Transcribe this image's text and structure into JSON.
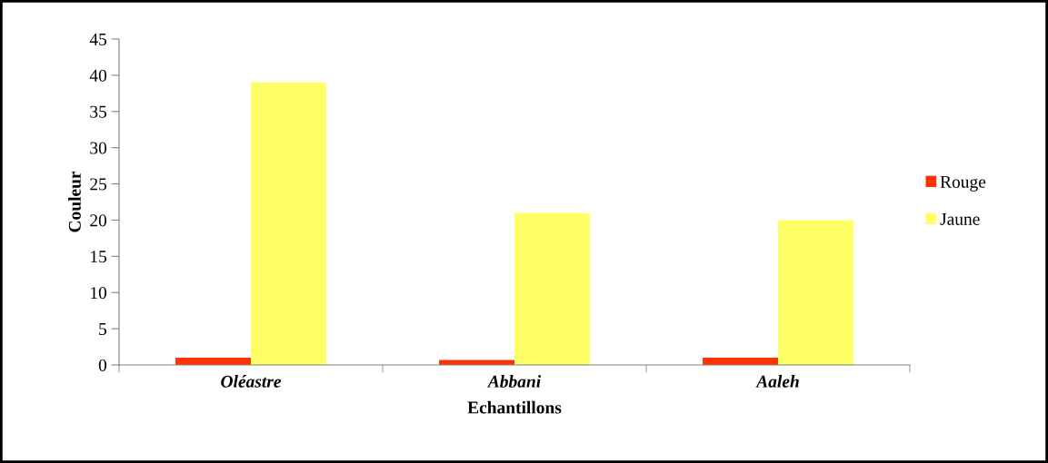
{
  "chart_data": {
    "type": "bar",
    "xlabel": "Echantillons",
    "ylabel": "Couleur",
    "categories": [
      "Oléastre",
      "Abbani",
      "Aaleh"
    ],
    "series": [
      {
        "name": "Rouge",
        "color": "#ff3300",
        "values": [
          1.0,
          0.7,
          1.0
        ]
      },
      {
        "name": "Jaune",
        "color": "#ffff66",
        "values": [
          39,
          21,
          20
        ]
      }
    ],
    "ylim": [
      0,
      45
    ],
    "yticks": [
      0,
      5,
      10,
      15,
      20,
      25,
      30,
      35,
      40,
      45
    ],
    "grid": false,
    "legend": "right"
  }
}
